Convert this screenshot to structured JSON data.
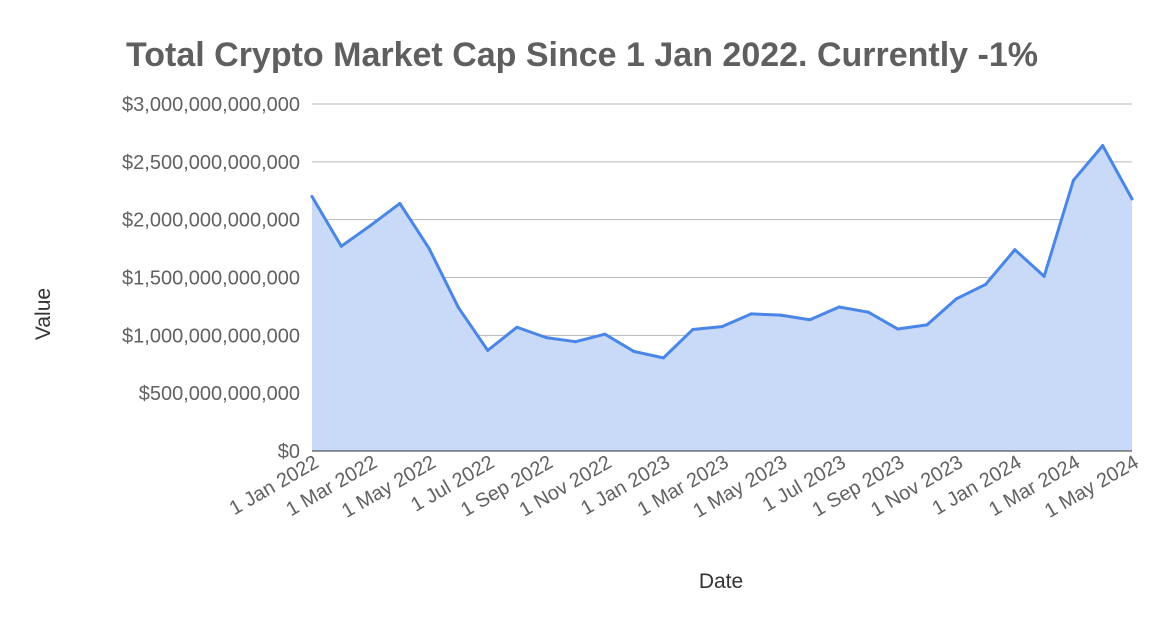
{
  "chart_data": {
    "type": "area",
    "title": "Total Crypto Market Cap Since 1 Jan 2022. Currently -1%",
    "xlabel": "Date",
    "ylabel": "Value",
    "ylim": [
      0,
      3000000000000
    ],
    "y_ticks": [
      {
        "value": 0,
        "label": "$0"
      },
      {
        "value": 500000000000,
        "label": "$500,000,000,000"
      },
      {
        "value": 1000000000000,
        "label": "$1,000,000,000,000"
      },
      {
        "value": 1500000000000,
        "label": "$1,500,000,000,000"
      },
      {
        "value": 2000000000000,
        "label": "$2,000,000,000,000"
      },
      {
        "value": 2500000000000,
        "label": "$2,500,000,000,000"
      },
      {
        "value": 3000000000000,
        "label": "$3,000,000,000,000"
      }
    ],
    "x_ticks": [
      "1 Jan 2022",
      "1 Mar 2022",
      "1 May 2022",
      "1 Jul 2022",
      "1 Sep 2022",
      "1 Nov 2022",
      "1 Jan 2023",
      "1 Mar 2023",
      "1 May 2023",
      "1 Jul 2023",
      "1 Sep 2023",
      "1 Nov 2023",
      "1 Jan 2024",
      "1 Mar 2024",
      "1 May 2024"
    ],
    "x": [
      "1 Jan 2022",
      "1 Feb 2022",
      "1 Mar 2022",
      "1 Apr 2022",
      "1 May 2022",
      "1 Jun 2022",
      "1 Jul 2022",
      "1 Aug 2022",
      "1 Sep 2022",
      "1 Oct 2022",
      "1 Nov 2022",
      "1 Dec 2022",
      "1 Jan 2023",
      "1 Feb 2023",
      "1 Mar 2023",
      "1 Apr 2023",
      "1 May 2023",
      "1 Jun 2023",
      "1 Jul 2023",
      "1 Aug 2023",
      "1 Sep 2023",
      "1 Oct 2023",
      "1 Nov 2023",
      "1 Dec 2023",
      "1 Jan 2024",
      "1 Feb 2024",
      "1 Mar 2024",
      "1 Apr 2024",
      "1 May 2024"
    ],
    "series": [
      {
        "values": [
          2200000000000,
          1770000000000,
          1950000000000,
          2140000000000,
          1750000000000,
          1240000000000,
          870000000000,
          1070000000000,
          980000000000,
          945000000000,
          1010000000000,
          860000000000,
          805000000000,
          1050000000000,
          1075000000000,
          1185000000000,
          1175000000000,
          1135000000000,
          1245000000000,
          1200000000000,
          1055000000000,
          1090000000000,
          1315000000000,
          1440000000000,
          1740000000000,
          1510000000000,
          2340000000000,
          2640000000000,
          2180000000000
        ]
      }
    ],
    "grid": true,
    "legend": "none",
    "colors": {
      "line": "#4a86e8",
      "fill": "#c9daf8",
      "grid": "#b7b7b7",
      "title": "#5f5f5f",
      "ticks": "#616161",
      "axis_label": "#333333"
    }
  }
}
